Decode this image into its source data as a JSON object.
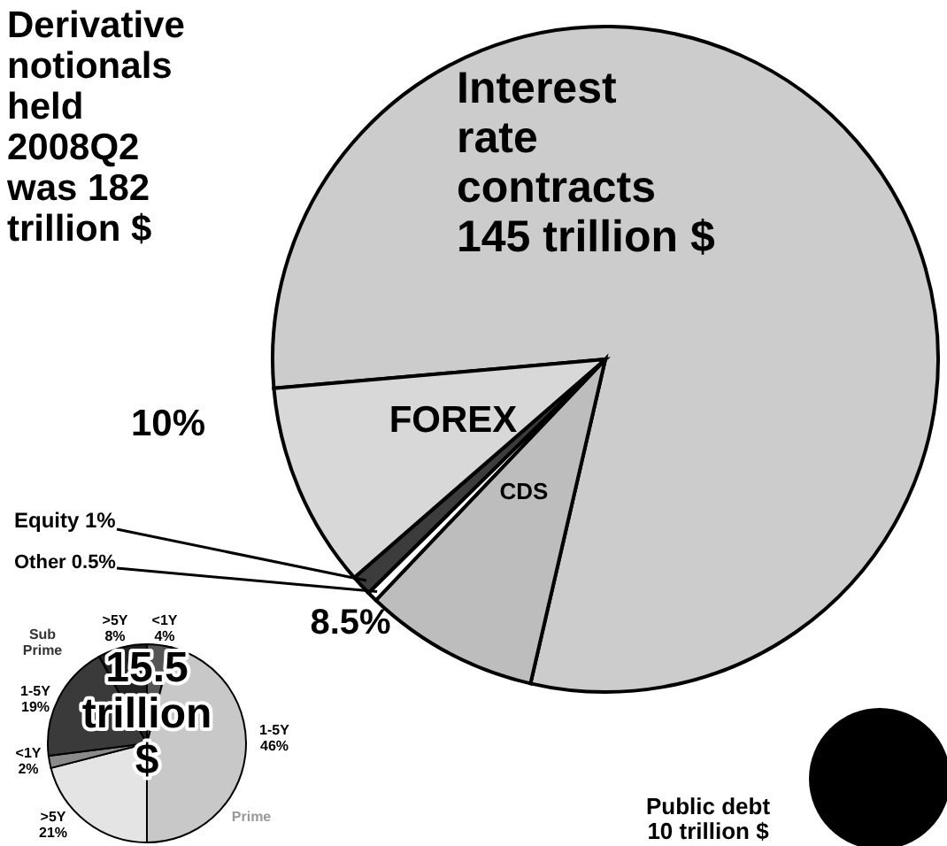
{
  "chart_data": [
    {
      "type": "pie",
      "title": "Derivative notionals held 2008Q2 was 182 trillion $",
      "categories": [
        "Interest rate contracts 145 trillion $",
        "CDS",
        "Other",
        "Equity",
        "FOREX"
      ],
      "values": [
        80,
        8.5,
        0.5,
        1,
        10
      ],
      "colors": [
        "#cccccc",
        "#bdbdbd",
        "#ffffff",
        "#3c3c3c",
        "#d8d8d8"
      ],
      "value_labels": [
        null,
        "8.5%",
        "0.5%",
        "1%",
        "10%"
      ]
    },
    {
      "type": "pie",
      "title": "15.5 trillion $",
      "categories": [
        "<1Y",
        "1-5Y",
        ">5Y",
        "<1Y",
        "1-5Y",
        ">5Y"
      ],
      "values": [
        4,
        46,
        21,
        2,
        19,
        8
      ],
      "colors": [
        "#555555",
        "#c8c8c8",
        "#e4e4e4",
        "#8a8a8a",
        "#3a3a3a",
        "#222222"
      ],
      "value_labels": [
        "4%",
        "46%",
        "21%",
        "2%",
        "19%",
        "8%"
      ],
      "annotations": [
        "Sub Prime",
        "Prime"
      ]
    },
    {
      "type": "pie",
      "categories": [
        "Public debt 10 trillion $"
      ],
      "values": [
        100
      ],
      "colors": [
        "#000000"
      ]
    }
  ]
}
